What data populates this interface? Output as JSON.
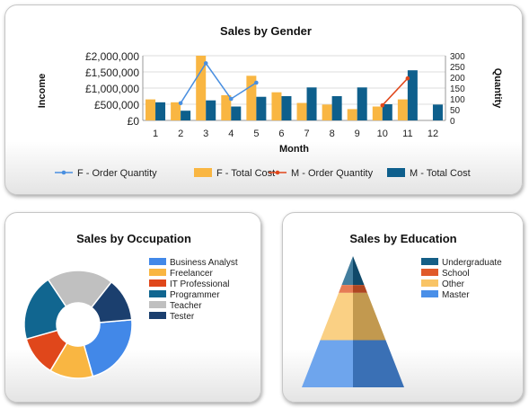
{
  "chart_data": [
    {
      "type": "bar",
      "title": "Sales by Gender",
      "xlabel": "Month",
      "ylabel": "Income",
      "y2label": "Quantity",
      "categories": [
        "1",
        "2",
        "3",
        "4",
        "5",
        "6",
        "7",
        "8",
        "9",
        "10",
        "11",
        "12"
      ],
      "y_ticks": [
        "£0",
        "£500,000",
        "£1,000,000",
        "£1,500,000",
        "£2,000,000"
      ],
      "y2_ticks": [
        "0",
        "50",
        "100",
        "150",
        "200",
        "250",
        "300"
      ],
      "ylim": [
        0,
        2000000
      ],
      "y2lim": [
        0,
        300
      ],
      "grid": true,
      "legend_position": "bottom",
      "series": [
        {
          "name": "F - Order Quantity",
          "kind": "line",
          "axis": "right",
          "color": "#4a8fe0",
          "values": [
            null,
            80,
            265,
            100,
            175,
            null,
            null,
            null,
            null,
            null,
            null,
            null
          ]
        },
        {
          "name": "F - Total Cost",
          "kind": "bar",
          "axis": "left",
          "color": "#f9b642",
          "values": [
            650000,
            560000,
            2000000,
            780000,
            1380000,
            870000,
            540000,
            490000,
            350000,
            430000,
            650000,
            null
          ]
        },
        {
          "name": "M - Order Quantity",
          "kind": "line",
          "axis": "right",
          "color": "#e0471b",
          "values": [
            null,
            null,
            null,
            null,
            null,
            null,
            null,
            null,
            null,
            70,
            195,
            null
          ]
        },
        {
          "name": "M - Total Cost",
          "kind": "bar",
          "axis": "left",
          "color": "#0e5f8c",
          "values": [
            560000,
            300000,
            620000,
            430000,
            730000,
            750000,
            1020000,
            750000,
            1020000,
            500000,
            1550000,
            490000
          ]
        }
      ]
    },
    {
      "type": "pie",
      "variant": "doughnut",
      "title": "Sales by Occupation",
      "legend_position": "right",
      "slices": [
        {
          "name": "Business Analyst",
          "value": 22,
          "color": "#4288e8"
        },
        {
          "name": "Freelancer",
          "value": 13,
          "color": "#f9b642"
        },
        {
          "name": "IT Professional",
          "value": 12,
          "color": "#e0471b"
        },
        {
          "name": "Programmer",
          "value": 20,
          "color": "#116690"
        },
        {
          "name": "Teacher",
          "value": 20,
          "color": "#c0c0c0"
        },
        {
          "name": "Tester",
          "value": 13,
          "color": "#1b3f6e"
        }
      ]
    },
    {
      "type": "pyramid",
      "title": "Sales by Education",
      "legend_position": "right",
      "slices": [
        {
          "name": "Undergraduate",
          "value": 22,
          "color": "#145e86"
        },
        {
          "name": "School",
          "value": 6,
          "color": "#e05a2a"
        },
        {
          "name": "Other",
          "value": 36,
          "color": "#f9c465"
        },
        {
          "name": "Master",
          "value": 36,
          "color": "#4a8fe8"
        }
      ]
    }
  ]
}
